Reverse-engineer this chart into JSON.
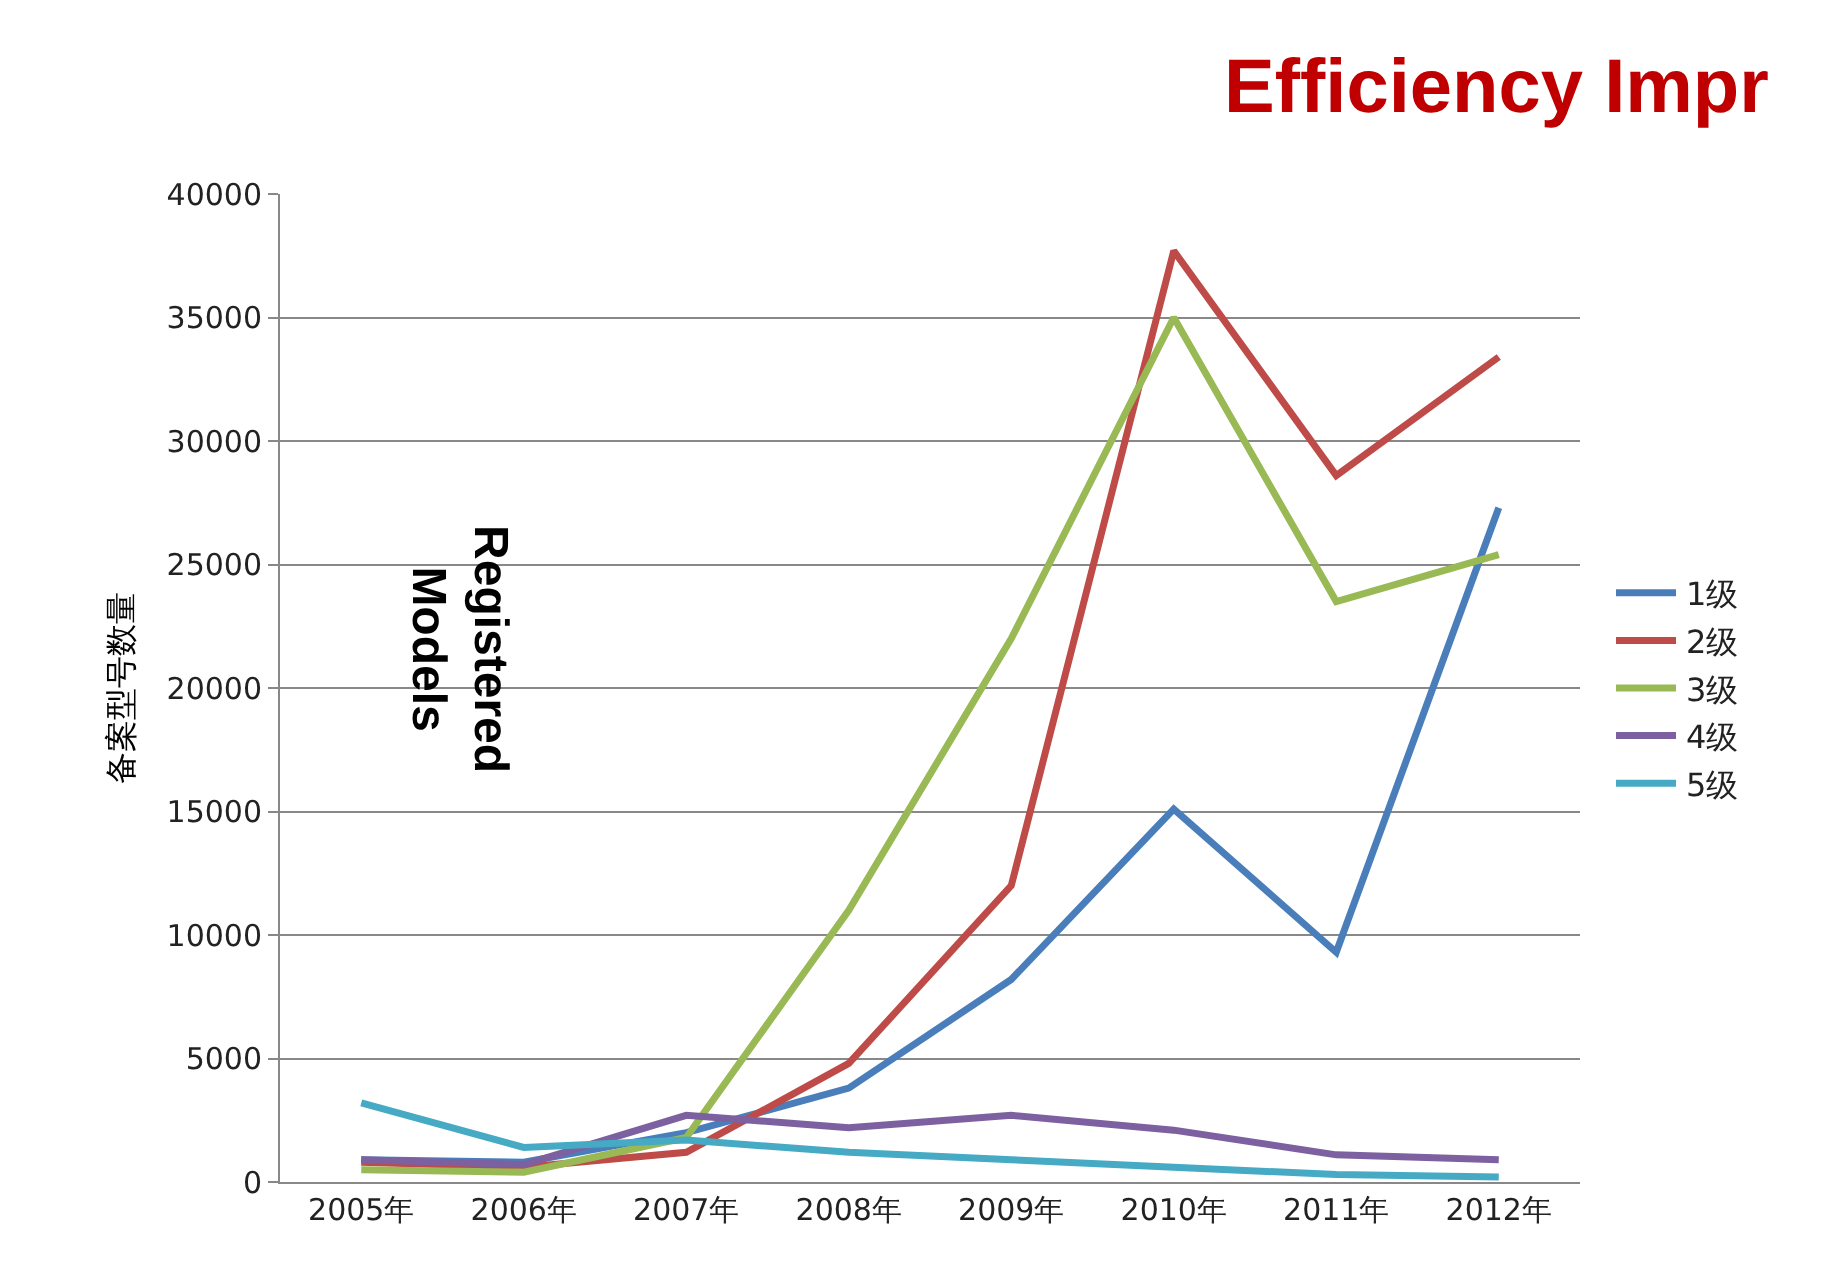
{
  "chart_data": {
    "type": "line",
    "title": "Efficiency Impr",
    "ylabel": "备案型号数量",
    "annotations": [
      "Registered\nModels"
    ],
    "categories": [
      "2005年",
      "2006年",
      "2007年",
      "2008年",
      "2009年",
      "2010年",
      "2011年",
      "2012年"
    ],
    "series": [
      {
        "name": "1级",
        "color": "#4a7ebb",
        "values": [
          900,
          800,
          2000,
          3800,
          8200,
          15100,
          9300,
          27300
        ]
      },
      {
        "name": "2级",
        "color": "#be4b48",
        "values": [
          800,
          600,
          1200,
          4800,
          12000,
          37700,
          28600,
          33400
        ]
      },
      {
        "name": "3级",
        "color": "#98b954",
        "values": [
          500,
          400,
          1800,
          11000,
          22000,
          35000,
          23500,
          25400
        ]
      },
      {
        "name": "4级",
        "color": "#7d60a0",
        "values": [
          900,
          700,
          2700,
          2200,
          2700,
          2100,
          1100,
          900
        ]
      },
      {
        "name": "5级",
        "color": "#46aac5",
        "values": [
          3200,
          1400,
          1700,
          1200,
          900,
          600,
          300,
          200
        ]
      }
    ],
    "ylim": [
      0,
      40000
    ],
    "yticks": [
      0,
      5000,
      10000,
      15000,
      20000,
      25000,
      30000,
      35000,
      40000
    ],
    "grid": "y",
    "legend": "right",
    "marker": "none",
    "line_style": "solid"
  }
}
